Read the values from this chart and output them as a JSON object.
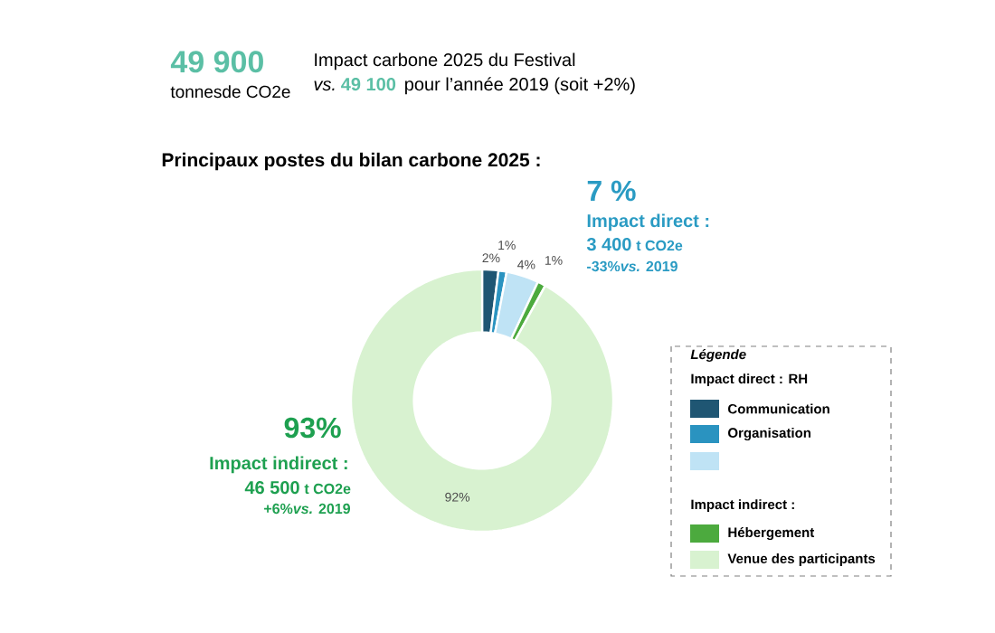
{
  "chart_data": {
    "type": "donut",
    "title": "Principaux postes du bilan carbone 2025 :",
    "categories": [
      "Communication",
      "Organisation",
      null,
      "Hébergement",
      "Venue des participants"
    ],
    "values": [
      2,
      1,
      4,
      1,
      92
    ],
    "value_labels": [
      "2%",
      "1%",
      "4%",
      "1%",
      "92%"
    ],
    "colors": [
      "#1f5673",
      "#2a93c0",
      "#bfe3f5",
      "#4caa3e",
      "#d8f2d0"
    ],
    "legend": "right",
    "legend_title": "Légende",
    "annotations": [
      "49 900",
      "tonnesde CO2e",
      "Impact carbone 2025 du Festival",
      "*vs.*",
      "49 100",
      "pour l’année 2019 (soit +2%)",
      "7 %",
      "Impact direct :",
      "3 400",
      "t CO2e",
      "-33%*vs.* 2019",
      "93%",
      "Impact indirect :",
      "46 500",
      "t CO2e",
      "+6%*vs.* 2019",
      "Impact direct : RH",
      "Impact indirect :"
    ]
  }
}
